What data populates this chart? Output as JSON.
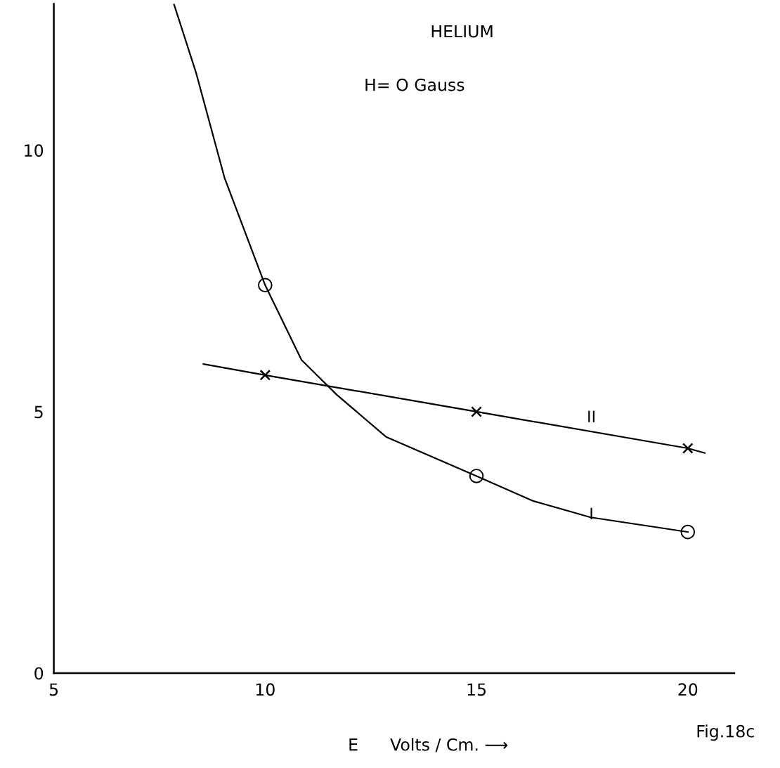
{
  "chart_data": {
    "type": "line",
    "title": "HELIUM",
    "subtitle": "H= O Gauss",
    "xlabel": "E      Volts / Cm. ⟶",
    "xlim": [
      5,
      21.1
    ],
    "ylim": [
      0,
      12.8
    ],
    "xticks": [
      5,
      10,
      15,
      20
    ],
    "yticks": [
      0,
      5,
      10
    ],
    "grid": false,
    "legend": false,
    "series": [
      {
        "color": "#000000",
        "marker": "none",
        "x": [
          7.84,
          8.37,
          9.04,
          10,
          10.86,
          11.7,
          12.86,
          15,
          16.35,
          17.7,
          20
        ],
        "values": [
          12.8,
          11.47,
          9.47,
          7.42,
          5.99,
          5.32,
          4.52,
          3.77,
          3.29,
          2.98,
          2.7
        ]
      },
      {
        "type": "scatter",
        "color": "#000000",
        "marker": "circle",
        "x": [
          10,
          15,
          20
        ],
        "values": [
          7.42,
          3.77,
          2.7
        ]
      },
      {
        "color": "#000000",
        "marker": "none",
        "x": [
          8.54,
          10,
          15,
          20,
          20.4
        ],
        "values": [
          5.91,
          5.7,
          5.0,
          4.3,
          4.21
        ]
      },
      {
        "type": "scatter",
        "color": "#000000",
        "marker": "cross",
        "x": [
          10,
          15,
          20
        ],
        "values": [
          5.7,
          5.0,
          4.3
        ]
      }
    ],
    "annotations": [
      "I",
      "II",
      "Fig.18c"
    ]
  }
}
